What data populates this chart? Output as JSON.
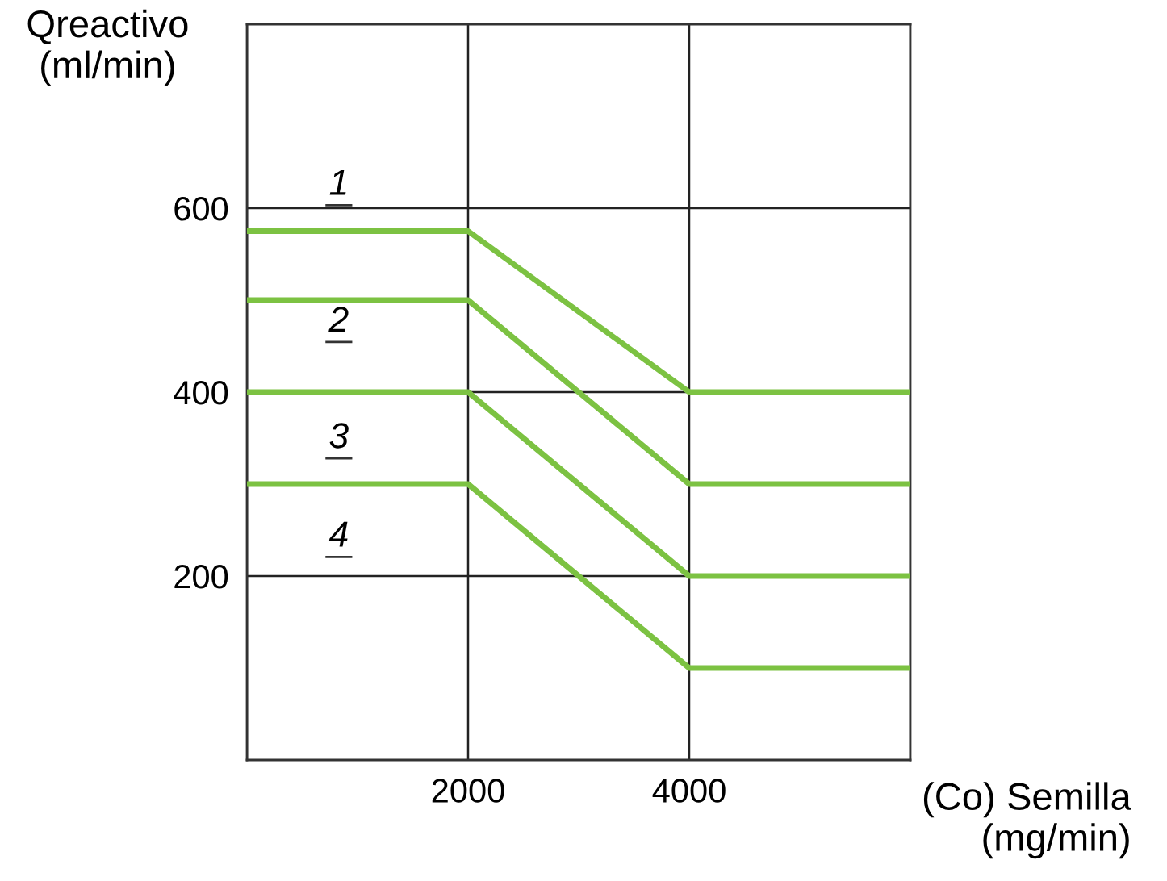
{
  "chart_data": {
    "type": "line",
    "xlabel": "(Co) Semilla\n(mg/min)",
    "ylabel": "Qreactivo\n(ml/min)",
    "x": [
      0,
      2000,
      4000,
      6000
    ],
    "xlim": [
      0,
      6000
    ],
    "xticks": [
      {
        "value": 0,
        "label": null
      },
      2000,
      4000,
      {
        "value": 6000,
        "label": null
      }
    ],
    "ylim": [
      0,
      800
    ],
    "yticks": [
      200,
      400,
      600
    ],
    "grid": true,
    "legend": false,
    "marker": "none",
    "line_style": "solid",
    "series": [
      {
        "color": "#7cc242",
        "values": [
          575,
          575,
          400,
          400
        ]
      },
      {
        "color": "#7cc242",
        "values": [
          500,
          500,
          300,
          300
        ]
      },
      {
        "color": "#7cc242",
        "values": [
          400,
          400,
          200,
          200
        ]
      },
      {
        "color": "#7cc242",
        "values": [
          300,
          300,
          100,
          100
        ]
      }
    ],
    "annotations": [
      "1",
      "2",
      "3",
      "4"
    ]
  }
}
